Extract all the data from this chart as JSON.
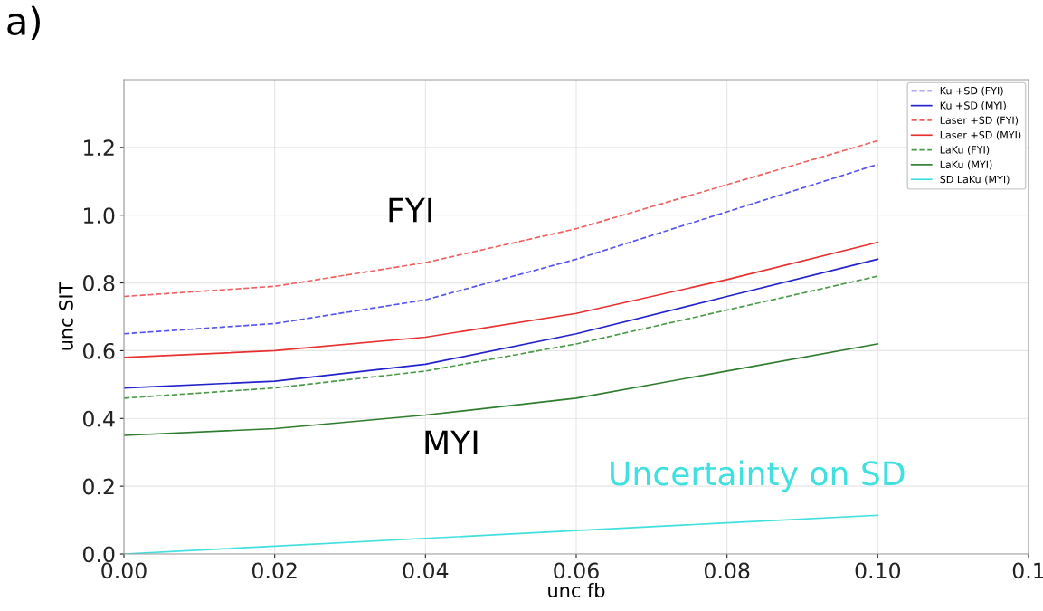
{
  "chart_data": {
    "type": "line",
    "title": "a)",
    "xlabel": "unc fb",
    "ylabel": "unc SIT",
    "x": [
      0,
      0.02,
      0.04,
      0.06,
      0.08,
      0.1
    ],
    "series": [
      {
        "name": "Ku +SD (FYI)",
        "color": "#5555ee",
        "line_style": "dashed",
        "values": [
          0.65,
          0.68,
          0.75,
          0.87,
          1.01,
          1.15
        ]
      },
      {
        "name": "Ku +SD (MYI)",
        "color": "#2222cc",
        "line_style": "solid",
        "values": [
          0.49,
          0.51,
          0.56,
          0.65,
          0.76,
          0.87
        ]
      },
      {
        "name": "Laser +SD (FYI)",
        "color": "#f06060",
        "line_style": "dashed",
        "values": [
          0.76,
          0.79,
          0.86,
          0.96,
          1.09,
          1.22
        ]
      },
      {
        "name": "Laser +SD (MYI)",
        "color": "#e83030",
        "line_style": "solid",
        "values": [
          0.58,
          0.6,
          0.64,
          0.71,
          0.81,
          0.92
        ]
      },
      {
        "name": "LaKu (FYI)",
        "color": "#4a9a4a",
        "line_style": "dashed",
        "values": [
          0.46,
          0.49,
          0.54,
          0.62,
          0.72,
          0.82
        ]
      },
      {
        "name": "LaKu (MYI)",
        "color": "#2e7d2e",
        "line_style": "solid",
        "values": [
          0.35,
          0.37,
          0.41,
          0.46,
          0.54,
          0.62
        ]
      },
      {
        "name": "SD LaKu (MYI)",
        "color": "#40e0e0",
        "line_style": "solid",
        "values": [
          0.0,
          0.023,
          0.046,
          0.069,
          0.092,
          0.114
        ]
      }
    ],
    "xlim": [
      0,
      0.12
    ],
    "xticks": [
      {
        "value": 0,
        "label": "0.00"
      },
      0.02,
      0.04,
      0.06,
      0.08,
      {
        "value": 0.1,
        "label": "0.10"
      },
      {
        "value": 0.12,
        "label": "0.1"
      }
    ],
    "ylim": [
      0,
      1.4
    ],
    "yticks": [
      {
        "value": 0,
        "label": "0.0"
      },
      0.2,
      0.4,
      0.6,
      0.8,
      {
        "value": 1.0,
        "label": "1.0"
      },
      1.2
    ],
    "grid": true,
    "legend": "top right",
    "marker": "none",
    "annotations": [
      "FYI",
      "MYI",
      "Uncertainty on SD"
    ]
  }
}
